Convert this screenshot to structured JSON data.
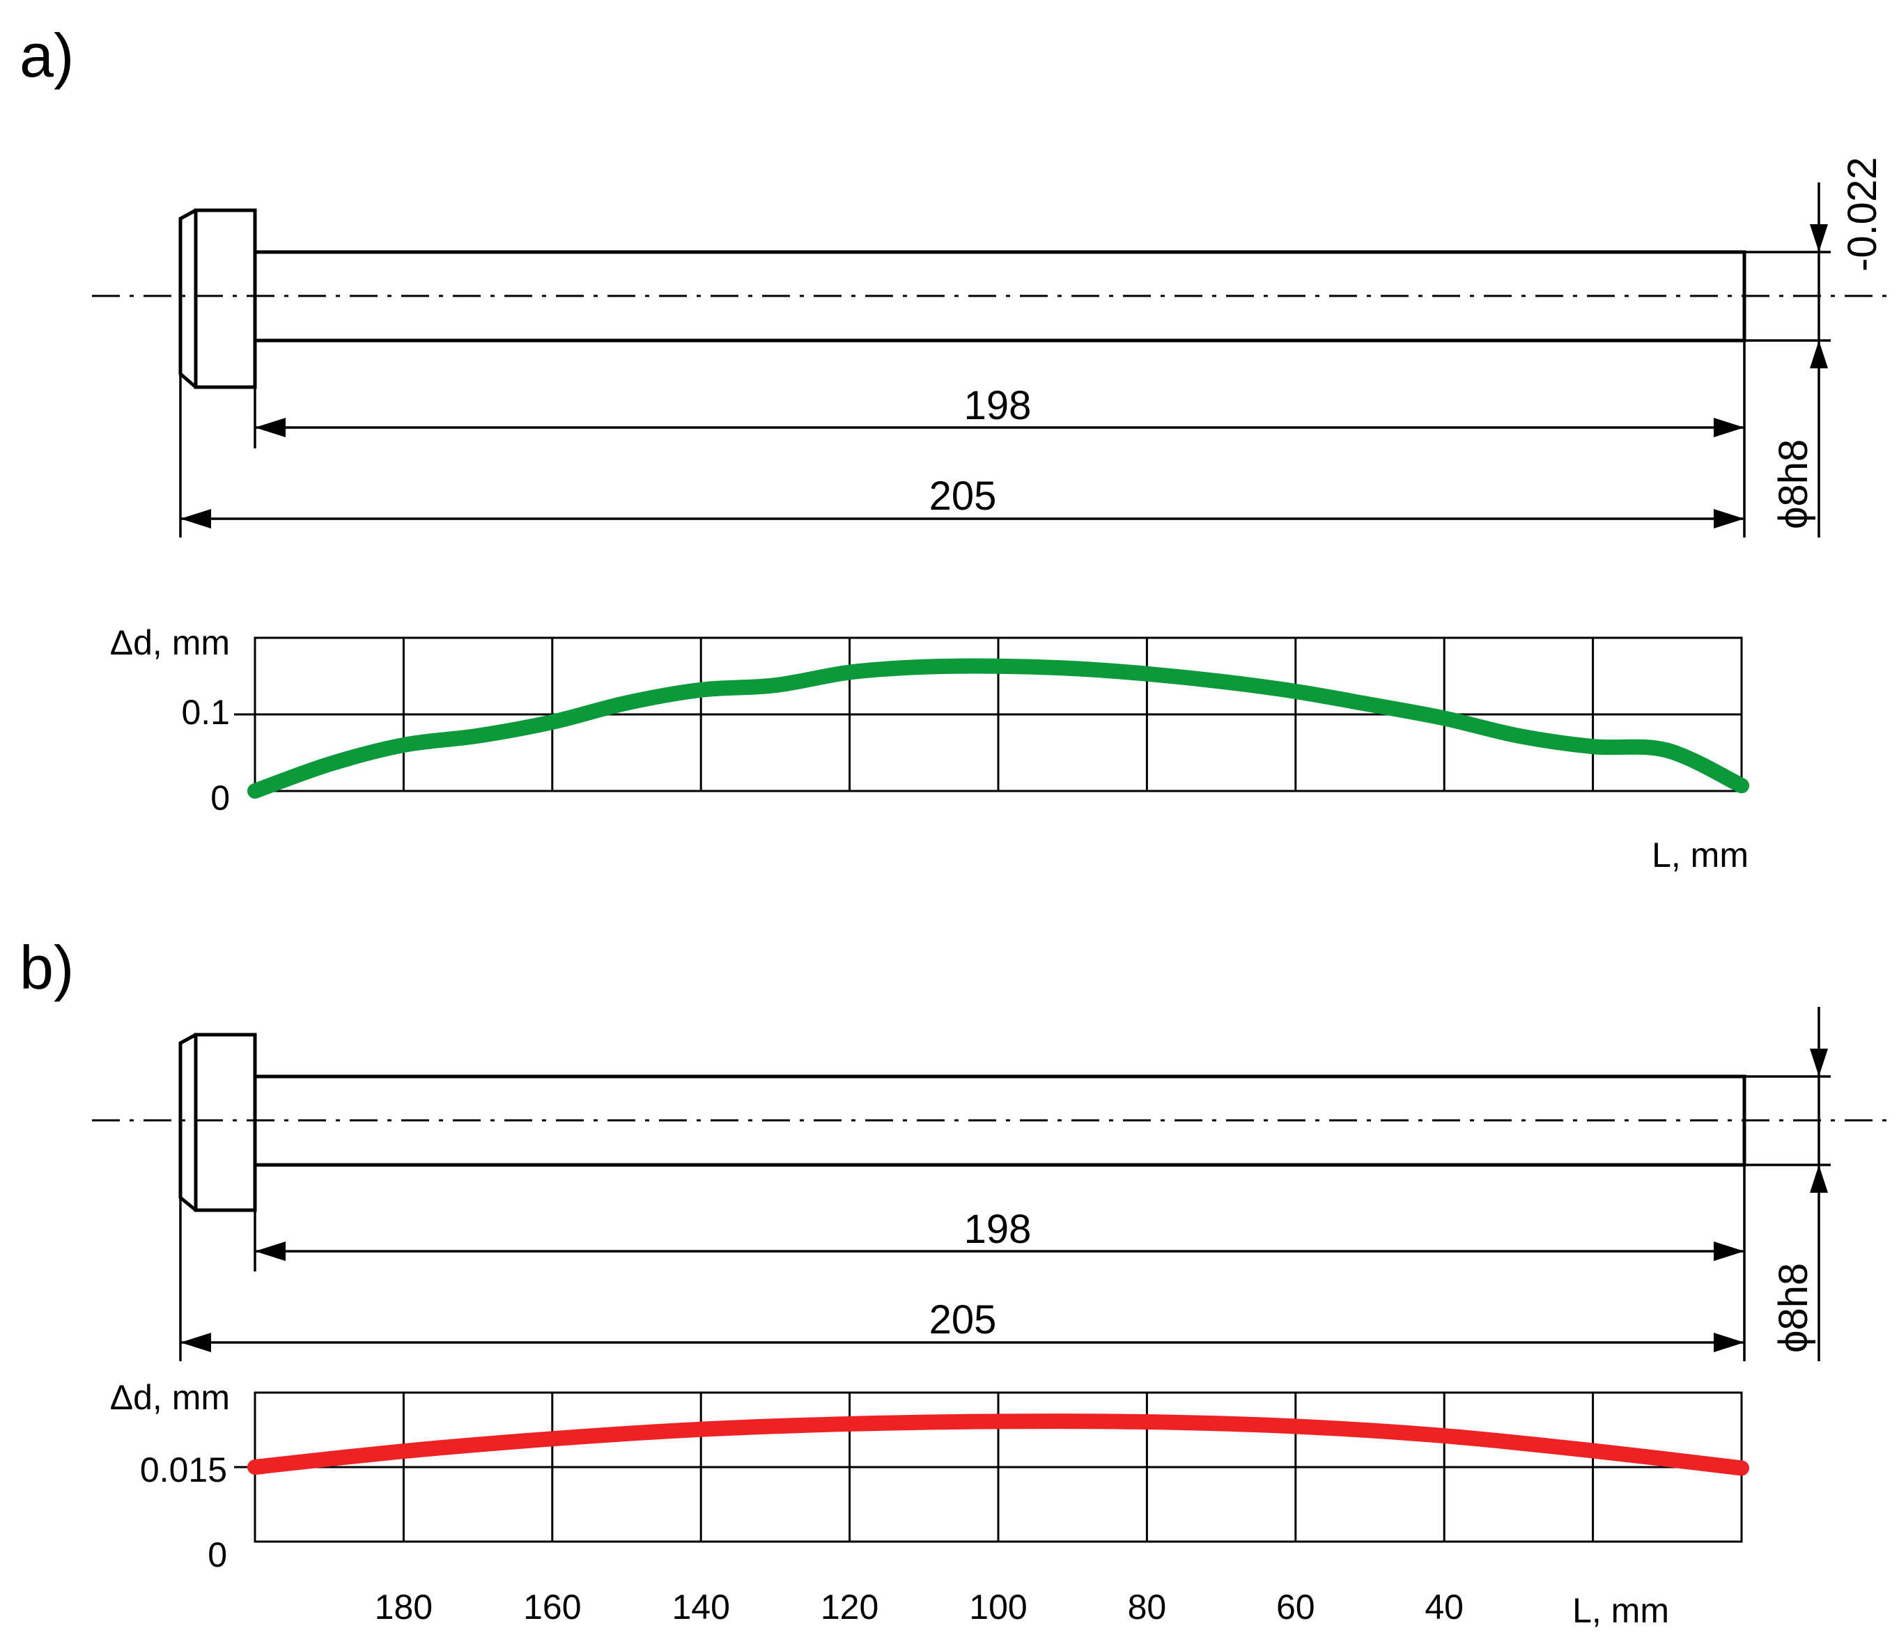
{
  "panels": [
    {
      "label": "a)",
      "drawing": {
        "dim_inner": "198",
        "dim_outer": "205",
        "diameter": "ϕ8h8",
        "tolerance": "-0.022"
      }
    },
    {
      "label": "b)",
      "drawing": {
        "dim_inner": "198",
        "dim_outer": "205",
        "diameter": "ϕ8h8"
      }
    }
  ],
  "chart_data": [
    {
      "type": "line",
      "panel": "a)",
      "ylabel": "Δd, mm",
      "xlabel": "L, mm",
      "x_reversed": true,
      "xlim": [
        0,
        200
      ],
      "ylim": [
        0,
        0.2
      ],
      "yticks": [
        "0",
        "0.1"
      ],
      "grid": true,
      "color": "#0a9a3a",
      "series": [
        {
          "x": [
            200,
            190,
            180,
            170,
            160,
            150,
            140,
            130,
            120,
            110,
            100,
            90,
            80,
            70,
            60,
            50,
            40,
            30,
            20,
            10,
            0
          ],
          "y": [
            0.0,
            0.035,
            0.06,
            0.072,
            0.09,
            0.115,
            0.132,
            0.138,
            0.155,
            0.162,
            0.163,
            0.16,
            0.153,
            0.143,
            0.13,
            0.113,
            0.095,
            0.072,
            0.058,
            0.053,
            0.007
          ]
        }
      ]
    },
    {
      "type": "line",
      "panel": "b)",
      "ylabel": "Δd, mm",
      "xlabel": "L, mm",
      "x_reversed": true,
      "xlim": [
        0,
        200
      ],
      "ylim": [
        0,
        0.03
      ],
      "yticks": [
        "0",
        "0.015"
      ],
      "xticks": [
        180,
        160,
        140,
        120,
        100,
        80,
        60,
        40
      ],
      "grid": true,
      "color": "#ee2222",
      "series": [
        {
          "x": [
            200,
            180,
            160,
            140,
            120,
            100,
            80,
            60,
            40,
            20,
            0
          ],
          "y": [
            0.015,
            0.0182,
            0.0207,
            0.0226,
            0.0237,
            0.0242,
            0.0241,
            0.0232,
            0.0213,
            0.0183,
            0.0148
          ]
        }
      ]
    }
  ]
}
